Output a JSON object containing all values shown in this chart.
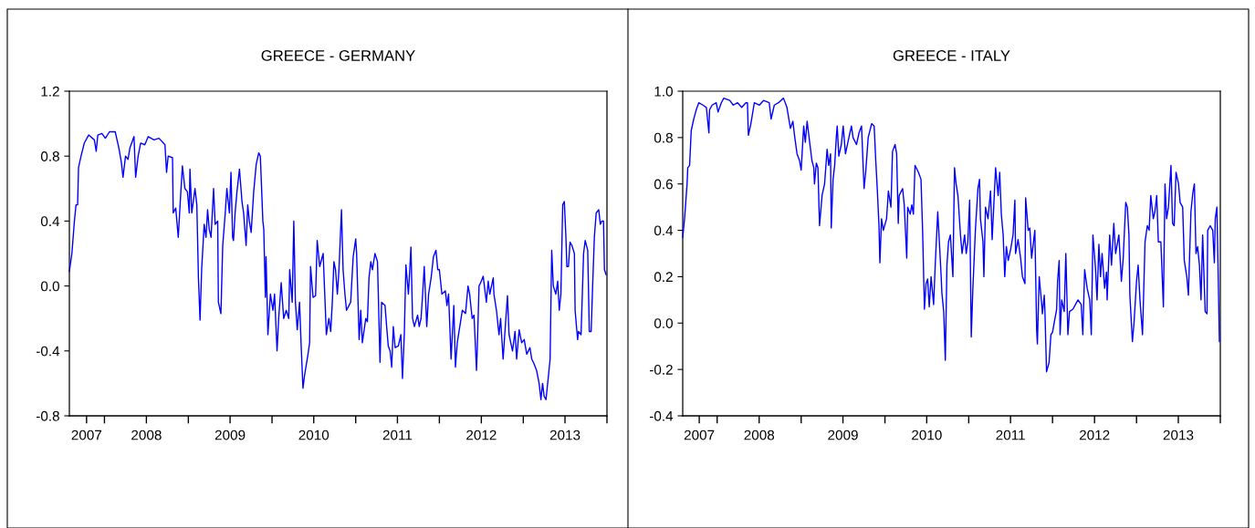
{
  "chart_data": [
    {
      "type": "line",
      "title": "GREECE - GERMANY",
      "xlim": [
        "2007-08-01",
        "2014-01-01"
      ],
      "ylim": [
        -0.8,
        1.2
      ],
      "yticks": [
        {
          "value": -0.8,
          "label": "-0.8"
        },
        {
          "value": -0.4,
          "label": "-0.4"
        },
        {
          "value": 0.0,
          "label": "0.0"
        },
        {
          "value": 0.4,
          "label": "0.4"
        },
        {
          "value": 0.8,
          "label": "0.8"
        },
        {
          "value": 1.2,
          "label": "1.2"
        }
      ],
      "xticks": [
        {
          "value": "2007-10-15",
          "label": "2007"
        },
        {
          "value": "2008-01-01",
          "label": null
        },
        {
          "value": "2008-07-02",
          "label": "2008"
        },
        {
          "value": "2009-01-01",
          "label": null
        },
        {
          "value": "2009-07-02",
          "label": "2009"
        },
        {
          "value": "2010-01-01",
          "label": null
        },
        {
          "value": "2010-07-02",
          "label": "2010"
        },
        {
          "value": "2011-01-01",
          "label": null
        },
        {
          "value": "2011-07-02",
          "label": "2011"
        },
        {
          "value": "2012-01-01",
          "label": null
        },
        {
          "value": "2012-07-02",
          "label": "2012"
        },
        {
          "value": "2013-01-01",
          "label": null
        },
        {
          "value": "2013-07-02",
          "label": "2013"
        },
        {
          "value": "2014-01-01",
          "label": null
        }
      ],
      "series": [
        {
          "color": "#0000ff",
          "x": [
            "2007-08-01",
            "2007-08-12",
            "2007-08-23",
            "2007-08-30",
            "2007-09-06",
            "2007-09-10",
            "2007-09-21",
            "2007-10-05",
            "2007-10-24",
            "2007-11-18",
            "2007-11-26",
            "2007-12-03",
            "2007-12-21",
            "2008-01-05",
            "2008-01-23",
            "2008-02-17",
            "2008-03-04",
            "2008-03-15",
            "2008-03-22",
            "2008-04-02",
            "2008-04-13",
            "2008-04-21",
            "2008-05-09",
            "2008-05-16",
            "2008-05-27",
            "2008-06-07",
            "2008-06-25",
            "2008-07-10",
            "2008-08-04",
            "2008-08-26",
            "2008-09-21",
            "2008-09-28",
            "2008-10-05",
            "2008-10-24",
            "2008-10-27",
            "2008-11-07",
            "2008-11-18",
            "2008-11-26",
            "2008-12-06",
            "2008-12-17",
            "2008-12-28",
            "2009-01-05",
            "2009-01-08",
            "2009-01-16",
            "2009-01-30",
            "2009-02-07",
            "2009-02-14",
            "2009-02-21",
            "2009-02-28",
            "2009-03-11",
            "2009-03-19",
            "2009-03-26",
            "2009-04-02",
            "2009-04-10",
            "2009-04-21",
            "2009-04-28",
            "2009-05-09",
            "2009-05-12",
            "2009-05-23",
            "2009-05-31",
            "2009-06-11",
            "2009-06-18",
            "2009-06-29",
            "2009-07-06",
            "2009-07-13",
            "2009-07-17",
            "2009-07-24",
            "2009-08-01",
            "2009-08-12",
            "2009-08-23",
            "2009-08-30",
            "2009-09-10",
            "2009-09-17",
            "2009-09-24",
            "2009-10-02",
            "2009-10-13",
            "2009-10-24",
            "2009-11-04",
            "2009-11-11",
            "2009-11-22",
            "2009-11-26",
            "2009-12-03",
            "2009-12-06",
            "2009-12-14",
            "2009-12-25",
            "2010-01-05",
            "2010-01-12",
            "2010-01-23",
            "2010-01-30",
            "2010-02-10",
            "2010-02-21",
            "2010-03-04",
            "2010-03-15",
            "2010-03-19",
            "2010-03-30",
            "2010-04-06",
            "2010-04-13",
            "2010-04-21",
            "2010-05-01",
            "2010-05-09",
            "2010-05-16",
            "2010-05-23",
            "2010-06-07",
            "2010-06-14",
            "2010-06-18",
            "2010-06-29",
            "2010-07-10",
            "2010-07-17",
            "2010-07-28",
            "2010-08-12",
            "2010-08-19",
            "2010-08-26",
            "2010-09-06",
            "2010-09-14",
            "2010-09-21",
            "2010-09-28",
            "2010-10-05",
            "2010-10-13",
            "2010-10-20",
            "2010-10-31",
            "2010-11-07",
            "2010-11-15",
            "2010-11-22",
            "2010-12-10",
            "2010-12-21",
            "2011-01-01",
            "2011-01-05",
            "2011-01-16",
            "2011-01-23",
            "2011-01-30",
            "2011-02-14",
            "2011-02-21",
            "2011-02-28",
            "2011-03-08",
            "2011-03-15",
            "2011-03-26",
            "2011-04-06",
            "2011-04-17",
            "2011-04-24",
            "2011-05-09",
            "2011-05-16",
            "2011-05-23",
            "2011-05-31",
            "2011-06-07",
            "2011-06-14",
            "2011-06-22",
            "2011-07-06",
            "2011-07-17",
            "2011-07-24",
            "2011-08-01",
            "2011-08-08",
            "2011-08-19",
            "2011-08-30",
            "2011-09-06",
            "2011-09-14",
            "2011-09-28",
            "2011-10-05",
            "2011-10-13",
            "2011-10-20",
            "2011-10-27",
            "2011-11-07",
            "2011-11-15",
            "2011-11-26",
            "2011-12-06",
            "2011-12-17",
            "2011-12-25",
            "2012-01-01",
            "2012-01-12",
            "2012-01-27",
            "2012-02-03",
            "2012-02-10",
            "2012-02-21",
            "2012-03-04",
            "2012-03-11",
            "2012-03-19",
            "2012-03-30",
            "2012-04-10",
            "2012-04-24",
            "2012-05-05",
            "2012-05-12",
            "2012-05-23",
            "2012-05-31",
            "2012-06-11",
            "2012-06-14",
            "2012-06-22",
            "2012-06-29",
            "2012-07-10",
            "2012-07-24",
            "2012-08-01",
            "2012-08-08",
            "2012-08-23",
            "2012-08-26",
            "2012-09-06",
            "2012-09-17",
            "2012-09-24",
            "2012-10-05",
            "2012-10-16",
            "2012-10-24",
            "2012-10-31",
            "2012-11-15",
            "2012-11-26",
            "2012-12-03",
            "2012-12-14",
            "2012-12-25",
            "2013-01-05",
            "2013-01-16",
            "2013-01-30",
            "2013-02-07",
            "2013-02-17",
            "2013-02-28",
            "2013-03-11",
            "2013-03-19",
            "2013-03-26",
            "2013-04-02",
            "2013-04-10",
            "2013-04-21",
            "2013-04-28",
            "2013-05-05",
            "2013-05-12",
            "2013-05-23",
            "2013-05-31",
            "2013-06-07",
            "2013-06-14",
            "2013-06-22",
            "2013-06-29",
            "2013-07-06",
            "2013-07-10",
            "2013-07-17",
            "2013-07-24",
            "2013-08-01",
            "2013-08-12",
            "2013-08-15",
            "2013-08-26",
            "2013-08-30",
            "2013-09-10",
            "2013-09-14",
            "2013-09-21",
            "2013-09-28",
            "2013-10-09",
            "2013-10-16",
            "2013-10-24",
            "2013-10-31",
            "2013-11-07",
            "2013-11-15",
            "2013-11-26",
            "2013-12-03",
            "2013-12-10",
            "2013-12-17",
            "2013-12-21",
            "2013-12-28"
          ],
          "values": [
            0.09,
            0.2,
            0.4,
            0.5,
            0.5,
            0.73,
            0.8,
            0.88,
            0.93,
            0.9,
            0.83,
            0.93,
            0.94,
            0.91,
            0.95,
            0.95,
            0.85,
            0.76,
            0.67,
            0.8,
            0.78,
            0.85,
            0.92,
            0.67,
            0.8,
            0.88,
            0.87,
            0.92,
            0.9,
            0.91,
            0.87,
            0.7,
            0.8,
            0.79,
            0.45,
            0.48,
            0.3,
            0.5,
            0.74,
            0.6,
            0.58,
            0.45,
            0.72,
            0.45,
            0.6,
            0.5,
            0.05,
            -0.21,
            0.1,
            0.38,
            0.3,
            0.47,
            0.35,
            0.3,
            0.6,
            0.38,
            0.4,
            -0.1,
            -0.17,
            0.25,
            0.45,
            0.6,
            0.45,
            0.7,
            0.3,
            0.28,
            0.45,
            0.58,
            0.72,
            0.52,
            0.45,
            0.25,
            0.5,
            0.4,
            0.33,
            0.58,
            0.75,
            0.82,
            0.8,
            0.4,
            0.35,
            -0.07,
            0.18,
            -0.3,
            -0.05,
            -0.15,
            -0.05,
            -0.4,
            -0.2,
            0.02,
            -0.2,
            -0.15,
            -0.2,
            0.1,
            -0.1,
            0.4,
            -0.1,
            -0.27,
            -0.1,
            -0.4,
            -0.63,
            -0.55,
            -0.42,
            -0.35,
            0.12,
            -0.07,
            -0.06,
            0.28,
            0.12,
            0.2,
            -0.05,
            -0.3,
            -0.2,
            -0.28,
            -0.1,
            0.15,
            0.1,
            -0.05,
            0.1,
            0.47,
            0.1,
            -0.05,
            -0.15,
            -0.1,
            0.18,
            0.29,
            0.2,
            -0.33,
            -0.15,
            -0.35,
            -0.2,
            -0.22,
            0.05,
            0.15,
            0.1,
            0.2,
            0.15,
            -0.47,
            -0.1,
            -0.12,
            -0.25,
            -0.37,
            -0.4,
            -0.5,
            -0.25,
            -0.38,
            -0.37,
            -0.3,
            -0.57,
            -0.3,
            0.13,
            -0.05,
            0.24,
            -0.2,
            -0.25,
            -0.18,
            -0.25,
            -0.2,
            -0.05,
            0.12,
            -0.25,
            -0.05,
            0.05,
            0.18,
            0.22,
            0.1,
            0.1,
            -0.05,
            -0.03,
            -0.12,
            -0.05,
            -0.45,
            -0.12,
            -0.5,
            -0.35,
            -0.25,
            -0.15,
            -0.17,
            0.0,
            -0.05,
            -0.2,
            -0.18,
            -0.52,
            -0.4,
            0.0,
            0.02,
            0.06,
            -0.1,
            0.03,
            -0.05,
            0.05,
            -0.05,
            -0.15,
            -0.3,
            -0.2,
            -0.45,
            -0.22,
            -0.06,
            -0.3,
            -0.4,
            -0.28,
            -0.45,
            -0.27,
            -0.35,
            -0.33,
            -0.42,
            -0.38,
            -0.45,
            -0.48,
            -0.52,
            -0.6,
            -0.7,
            -0.6,
            -0.68,
            -0.7,
            -0.55,
            -0.45,
            0.22,
            0.0,
            -0.05,
            0.03,
            -0.15,
            -0.05,
            0.5,
            0.52,
            0.3,
            0.12,
            0.12,
            0.27,
            0.25,
            0.2,
            -0.15,
            -0.33,
            -0.28,
            -0.3,
            -0.12,
            0.2,
            0.28,
            0.22,
            -0.28,
            -0.28,
            0.02,
            0.3,
            0.45,
            0.47,
            0.38,
            0.4,
            0.4,
            0.1,
            0.07
          ]
        }
      ]
    },
    {
      "type": "line",
      "title": "GREECE - ITALY",
      "xlim": [
        "2007-08-04",
        "2014-01-01"
      ],
      "ylim": [
        -0.4,
        1.0
      ],
      "yticks": [
        {
          "value": -0.4,
          "label": "-0.4"
        },
        {
          "value": -0.2,
          "label": "-0.2"
        },
        {
          "value": 0.0,
          "label": "0.0"
        },
        {
          "value": 0.2,
          "label": "0.2"
        },
        {
          "value": 0.4,
          "label": "0.4"
        },
        {
          "value": 0.6,
          "label": "0.6"
        },
        {
          "value": 0.8,
          "label": "0.8"
        },
        {
          "value": 1.0,
          "label": "1.0"
        }
      ],
      "xticks": [
        {
          "value": "2007-10-15",
          "label": "2007"
        },
        {
          "value": "2008-01-01",
          "label": null
        },
        {
          "value": "2008-07-02",
          "label": "2008"
        },
        {
          "value": "2009-01-01",
          "label": null
        },
        {
          "value": "2009-07-02",
          "label": "2009"
        },
        {
          "value": "2010-01-01",
          "label": null
        },
        {
          "value": "2010-07-02",
          "label": "2010"
        },
        {
          "value": "2011-01-01",
          "label": null
        },
        {
          "value": "2011-07-02",
          "label": "2011"
        },
        {
          "value": "2012-01-01",
          "label": null
        },
        {
          "value": "2012-07-02",
          "label": "2012"
        },
        {
          "value": "2013-01-01",
          "label": null
        },
        {
          "value": "2013-07-02",
          "label": "2013"
        },
        {
          "value": "2014-01-01",
          "label": null
        }
      ],
      "series": [
        {
          "color": "#0000ff",
          "x": [
            "2007-08-04",
            "2007-08-12",
            "2007-08-23",
            "2007-08-26",
            "2007-09-03",
            "2007-09-10",
            "2007-09-21",
            "2007-10-02",
            "2007-10-13",
            "2007-10-31",
            "2007-11-15",
            "2007-11-26",
            "2007-11-29",
            "2007-12-10",
            "2007-12-28",
            "2008-01-05",
            "2008-01-19",
            "2008-01-30",
            "2008-02-25",
            "2008-03-11",
            "2008-03-30",
            "2008-04-17",
            "2008-05-05",
            "2008-05-12",
            "2008-05-16",
            "2008-05-27",
            "2008-06-11",
            "2008-07-03",
            "2008-07-21",
            "2008-08-15",
            "2008-08-23",
            "2008-09-06",
            "2008-09-24",
            "2008-10-16",
            "2008-10-31",
            "2008-11-15",
            "2008-11-26",
            "2008-12-03",
            "2008-12-14",
            "2008-12-25",
            "2009-01-01",
            "2009-01-12",
            "2009-01-19",
            "2009-01-27",
            "2009-02-07",
            "2009-02-17",
            "2009-02-25",
            "2009-02-28",
            "2009-03-08",
            "2009-03-15",
            "2009-03-22",
            "2009-04-02",
            "2009-04-13",
            "2009-04-24",
            "2009-05-01",
            "2009-05-09",
            "2009-05-12",
            "2009-05-20",
            "2009-05-27",
            "2009-06-03",
            "2009-06-07",
            "2009-06-14",
            "2009-06-25",
            "2009-07-03",
            "2009-07-13",
            "2009-07-28",
            "2009-08-08",
            "2009-08-15",
            "2009-08-30",
            "2009-09-10",
            "2009-09-21",
            "2009-10-02",
            "2009-10-09",
            "2009-10-20",
            "2009-11-04",
            "2009-11-15",
            "2009-11-22",
            "2009-11-29",
            "2009-12-06",
            "2009-12-10",
            "2009-12-17",
            "2009-12-25",
            "2010-01-08",
            "2010-01-16",
            "2010-01-27",
            "2010-02-03",
            "2010-02-14",
            "2010-02-21",
            "2010-02-28",
            "2010-03-04",
            "2010-03-19",
            "2010-03-26",
            "2010-04-06",
            "2010-04-10",
            "2010-04-21",
            "2010-04-28",
            "2010-05-05",
            "2010-05-12",
            "2010-05-27",
            "2010-06-07",
            "2010-06-14",
            "2010-06-22",
            "2010-06-29",
            "2010-07-06",
            "2010-07-13",
            "2010-07-21",
            "2010-08-01",
            "2010-08-08",
            "2010-08-19",
            "2010-08-26",
            "2010-09-03",
            "2010-09-06",
            "2010-09-14",
            "2010-09-21",
            "2010-09-28",
            "2010-10-05",
            "2010-10-13",
            "2010-10-24",
            "2010-10-31",
            "2010-11-07",
            "2010-11-15",
            "2010-11-26",
            "2010-12-03",
            "2010-12-14",
            "2010-12-21",
            "2010-12-28",
            "2011-01-05",
            "2011-01-12",
            "2011-01-19",
            "2011-01-30",
            "2011-02-10",
            "2011-02-17",
            "2011-02-21",
            "2011-03-04",
            "2011-03-08",
            "2011-03-15",
            "2011-03-26",
            "2011-04-06",
            "2011-04-13",
            "2011-04-28",
            "2011-05-09",
            "2011-05-16",
            "2011-05-23",
            "2011-05-31",
            "2011-06-07",
            "2011-06-14",
            "2011-06-22",
            "2011-07-03",
            "2011-07-13",
            "2011-07-21",
            "2011-07-24",
            "2011-08-04",
            "2011-08-15",
            "2011-08-23",
            "2011-09-03",
            "2011-09-06",
            "2011-09-17",
            "2011-09-24",
            "2011-10-02",
            "2011-10-16",
            "2011-10-24",
            "2011-10-27",
            "2011-11-04",
            "2011-11-15",
            "2011-11-18",
            "2011-11-26",
            "2011-11-29",
            "2011-12-06",
            "2011-12-17",
            "2011-12-25",
            "2012-01-01",
            "2012-01-08",
            "2012-01-19",
            "2012-01-23",
            "2012-01-30",
            "2012-02-03",
            "2012-02-10",
            "2012-02-21",
            "2012-02-28",
            "2012-03-08",
            "2012-03-15",
            "2012-03-30",
            "2012-04-10",
            "2012-04-21",
            "2012-05-05",
            "2012-05-12",
            "2012-05-20",
            "2012-05-31",
            "2012-06-11",
            "2012-06-18",
            "2012-06-25",
            "2012-07-06",
            "2012-07-13",
            "2012-07-21",
            "2012-07-28",
            "2012-08-04",
            "2012-08-15",
            "2012-08-23",
            "2012-08-26",
            "2012-09-06",
            "2012-09-14",
            "2012-09-24",
            "2012-10-02",
            "2012-10-16",
            "2012-10-27",
            "2012-11-04",
            "2012-11-15",
            "2012-11-22",
            "2012-11-29",
            "2012-12-03",
            "2012-12-14",
            "2012-12-21",
            "2013-01-01",
            "2013-01-08",
            "2013-01-16",
            "2013-01-27",
            "2013-02-03",
            "2013-02-07",
            "2013-02-17",
            "2013-02-25",
            "2013-03-04",
            "2013-03-15",
            "2013-03-22",
            "2013-03-30",
            "2013-04-06",
            "2013-04-17",
            "2013-04-28",
            "2013-05-05",
            "2013-05-12",
            "2013-05-20",
            "2013-05-31",
            "2013-06-07",
            "2013-06-14",
            "2013-06-22",
            "2013-07-03",
            "2013-07-10",
            "2013-07-21",
            "2013-07-28",
            "2013-08-08",
            "2013-08-15",
            "2013-08-26",
            "2013-09-03",
            "2013-09-10",
            "2013-09-17",
            "2013-09-24",
            "2013-10-02",
            "2013-10-09",
            "2013-10-16",
            "2013-10-27",
            "2013-11-04",
            "2013-11-07",
            "2013-11-18",
            "2013-11-29",
            "2013-12-06",
            "2013-12-10",
            "2013-12-17",
            "2013-12-21",
            "2013-12-28"
          ],
          "values": [
            0.37,
            0.45,
            0.6,
            0.67,
            0.68,
            0.83,
            0.88,
            0.92,
            0.95,
            0.94,
            0.93,
            0.82,
            0.92,
            0.94,
            0.95,
            0.91,
            0.95,
            0.97,
            0.96,
            0.94,
            0.95,
            0.93,
            0.95,
            0.95,
            0.81,
            0.86,
            0.95,
            0.94,
            0.96,
            0.95,
            0.88,
            0.94,
            0.95,
            0.97,
            0.93,
            0.84,
            0.87,
            0.81,
            0.73,
            0.7,
            0.66,
            0.85,
            0.78,
            0.87,
            0.78,
            0.7,
            0.67,
            0.6,
            0.69,
            0.67,
            0.42,
            0.55,
            0.6,
            0.75,
            0.68,
            0.73,
            0.41,
            0.62,
            0.68,
            0.8,
            0.85,
            0.72,
            0.77,
            0.85,
            0.73,
            0.8,
            0.85,
            0.8,
            0.77,
            0.82,
            0.85,
            0.58,
            0.65,
            0.8,
            0.86,
            0.85,
            0.7,
            0.57,
            0.42,
            0.26,
            0.45,
            0.4,
            0.45,
            0.57,
            0.5,
            0.74,
            0.77,
            0.73,
            0.43,
            0.55,
            0.58,
            0.51,
            0.28,
            0.5,
            0.47,
            0.51,
            0.47,
            0.68,
            0.65,
            0.62,
            0.4,
            0.06,
            0.17,
            0.19,
            0.07,
            0.2,
            0.08,
            0.25,
            0.48,
            0.35,
            0.2,
            0.13,
            0.05,
            -0.16,
            0.25,
            0.35,
            0.38,
            0.2,
            0.67,
            0.6,
            0.55,
            0.38,
            0.3,
            0.38,
            0.3,
            0.35,
            0.53,
            -0.06,
            0.15,
            0.4,
            0.58,
            0.62,
            0.45,
            0.35,
            0.2,
            0.5,
            0.45,
            0.57,
            0.36,
            0.67,
            0.55,
            0.65,
            0.47,
            0.38,
            0.2,
            0.33,
            0.27,
            0.32,
            0.38,
            0.53,
            0.3,
            0.36,
            0.28,
            0.2,
            0.17,
            0.54,
            0.4,
            0.41,
            0.28,
            0.4,
            -0.03,
            -0.09,
            0.2,
            0.08,
            0.04,
            0.12,
            0.05,
            -0.21,
            -0.17,
            -0.05,
            -0.04,
            0.0,
            0.06,
            0.18,
            0.27,
            -0.05,
            0.1,
            0.05,
            0.3,
            -0.05,
            0.05,
            0.06,
            0.08,
            0.1,
            0.08,
            -0.05,
            0.23,
            0.15,
            0.1,
            -0.05,
            0.38,
            0.24,
            0.1,
            0.34,
            0.2,
            0.3,
            0.15,
            0.22,
            0.1,
            0.38,
            0.25,
            0.43,
            0.3,
            0.38,
            0.18,
            0.28,
            0.52,
            0.5,
            0.38,
            0.12,
            -0.08,
            0.0,
            0.18,
            0.25,
            0.1,
            -0.05,
            0.2,
            0.35,
            0.42,
            0.4,
            0.55,
            0.45,
            0.48,
            0.55,
            0.35,
            0.35,
            0.07,
            0.6,
            0.45,
            0.5,
            0.68,
            0.43,
            0.42,
            0.65,
            0.6,
            0.52,
            0.5,
            0.27,
            0.2,
            0.12,
            0.48,
            0.56,
            0.6,
            0.3,
            0.33,
            0.25,
            0.1,
            0.38,
            0.05,
            0.04,
            0.4,
            0.42,
            0.4,
            0.26,
            0.45,
            0.5,
            0.3,
            -0.08
          ]
        }
      ]
    }
  ]
}
